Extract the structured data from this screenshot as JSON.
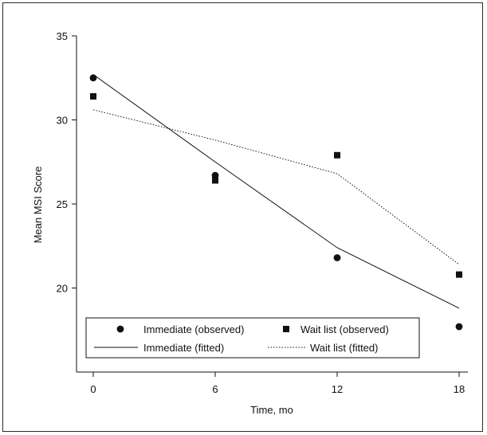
{
  "chart_data": {
    "type": "scatter",
    "title": "",
    "xlabel": "Time, mo",
    "ylabel": "Mean MSI Score",
    "xlim": [
      0,
      18
    ],
    "ylim": [
      15,
      35
    ],
    "xticks": [
      "0",
      "6",
      "12",
      "18"
    ],
    "yticks": [
      "20",
      "25",
      "30",
      "35"
    ],
    "grid": false,
    "legend_position": "bottom-inside",
    "series": [
      {
        "name": "Immediate (observed)",
        "kind": "points",
        "marker": "circle",
        "x": [
          0,
          6,
          12,
          18
        ],
        "y": [
          32.5,
          26.7,
          21.8,
          17.7
        ]
      },
      {
        "name": "Wait list (observed)",
        "kind": "points",
        "marker": "square",
        "x": [
          0,
          6,
          12,
          18
        ],
        "y": [
          31.4,
          26.4,
          27.9,
          20.8
        ]
      },
      {
        "name": "Immediate (fitted)",
        "kind": "line",
        "dash": "solid",
        "x": [
          0,
          6,
          12,
          18
        ],
        "y": [
          32.7,
          27.5,
          22.4,
          18.8
        ]
      },
      {
        "name": "Wait list (fitted)",
        "kind": "line",
        "dash": "dotted",
        "x": [
          0,
          6,
          12,
          18
        ],
        "y": [
          30.6,
          28.8,
          26.8,
          21.4
        ]
      }
    ],
    "colors": {
      "ink": "#111111"
    }
  }
}
